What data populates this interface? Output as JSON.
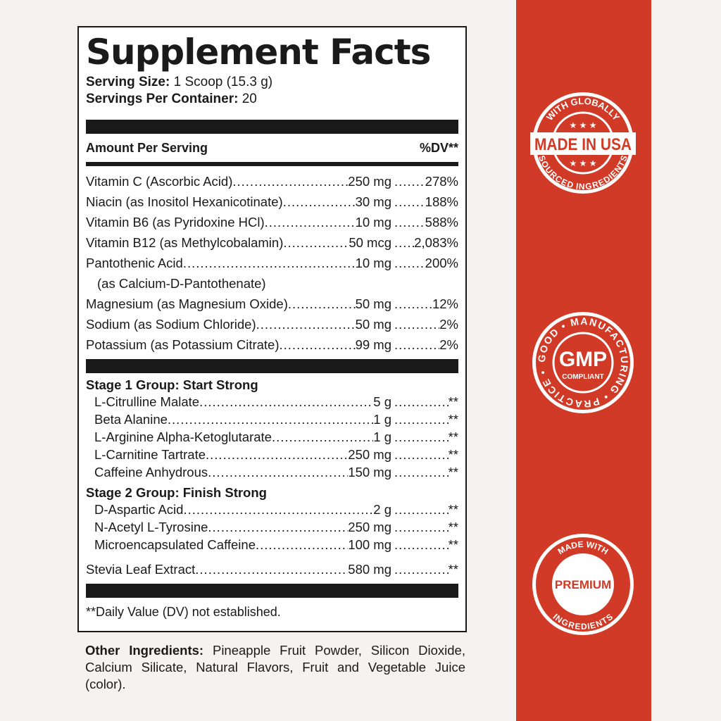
{
  "label": {
    "title": "Supplement Facts",
    "serving_size_label": "Serving Size:",
    "serving_size": "1 Scoop (15.3 g)",
    "servings_label": "Servings Per Container:",
    "servings": "20",
    "amount_header": "Amount Per Serving",
    "dv_header": "%DV**",
    "nutrients": [
      {
        "name": "Vitamin C (Ascorbic Acid)",
        "amount": "250 mg",
        "dv": "278%"
      },
      {
        "name": "Niacin (as Inositol Hexanicotinate)",
        "amount": "30 mg",
        "dv": "188%"
      },
      {
        "name": "Vitamin B6 (as Pyridoxine HCl)",
        "amount": "10 mg",
        "dv": "588%"
      },
      {
        "name": "Vitamin B12 (as Methylcobalamin)",
        "amount": "50 mcg",
        "dv": "2,083%"
      },
      {
        "name": "Pantothenic Acid",
        "amount": "10 mg",
        "dv": "200%",
        "sub": "(as Calcium-D-Pantothenate)"
      },
      {
        "name": "Magnesium (as Magnesium Oxide)",
        "amount": "50 mg",
        "dv": "12%"
      },
      {
        "name": "Sodium (as Sodium Chloride)",
        "amount": "50 mg",
        "dv": "2%"
      },
      {
        "name": "Potassium (as Potassium Citrate)",
        "amount": "99 mg",
        "dv": "2%"
      }
    ],
    "stage1": {
      "title": "Stage 1 Group: Start Strong",
      "items": [
        {
          "name": "L-Citrulline Malate",
          "amount": "5 g",
          "dv": "**"
        },
        {
          "name": "Beta Alanine",
          "amount": "1 g",
          "dv": "**"
        },
        {
          "name": "L-Arginine Alpha-Ketoglutarate",
          "amount": "1 g",
          "dv": "**"
        },
        {
          "name": "L-Carnitine Tartrate",
          "amount": "250 mg",
          "dv": "**"
        },
        {
          "name": "Caffeine Anhydrous",
          "amount": "150 mg",
          "dv": "**"
        }
      ]
    },
    "stage2": {
      "title": "Stage 2 Group: Finish Strong",
      "items": [
        {
          "name": "D-Aspartic Acid",
          "amount": "2 g",
          "dv": "**"
        },
        {
          "name": "N-Acetyl L-Tyrosine",
          "amount": "250 mg",
          "dv": "**"
        },
        {
          "name": "Microencapsulated Caffeine",
          "amount": "100 mg",
          "dv": "**"
        }
      ]
    },
    "stevia": {
      "name": "Stevia Leaf Extract",
      "amount": "580 mg",
      "dv": "**"
    },
    "footnote": "**Daily Value (DV) not established."
  },
  "other": {
    "label": "Other Ingredients:",
    "text": " Pineapple Fruit Powder, Silicon Dioxide, Calcium Silicate, Natural Flavors, Fruit and Vegetable Juice (color)."
  },
  "badges": {
    "usa": {
      "top": "WITH GLOBALLY",
      "main": "MADE IN USA",
      "bottom": "SOURCED INGREDIENTS"
    },
    "gmp": {
      "ring": "GOOD • MANUFACTURING • PRACTICE •",
      "main": "GMP",
      "sub": "COMPLIANT"
    },
    "premium": {
      "top": "MADE WITH",
      "main": "PREMIUM",
      "bottom": "INGREDIENTS"
    }
  },
  "colors": {
    "accent": "#d13a27",
    "ink": "#1a1a1a"
  }
}
